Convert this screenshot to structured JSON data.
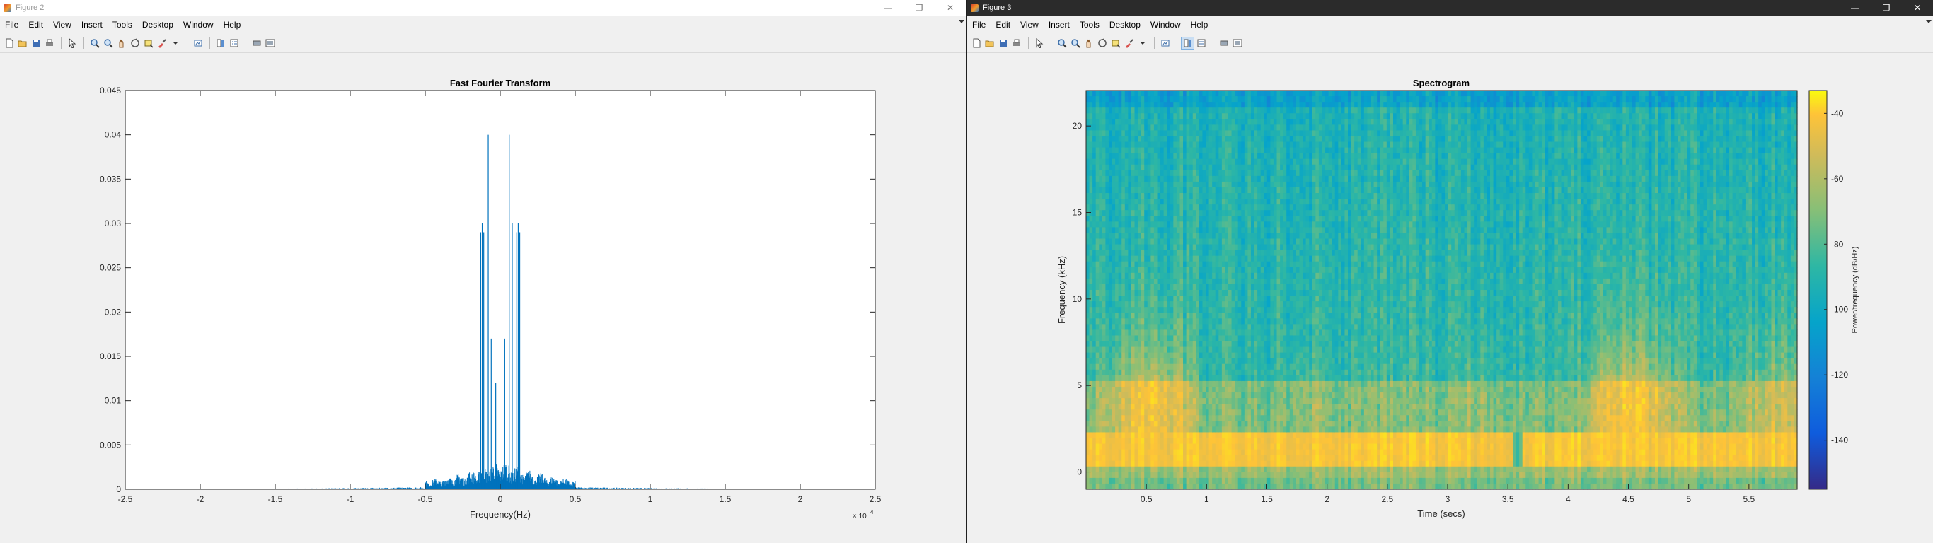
{
  "windows": [
    {
      "title": "Figure 2",
      "menu": [
        "File",
        "Edit",
        "View",
        "Insert",
        "Tools",
        "Desktop",
        "Window",
        "Help"
      ],
      "chart_data": {
        "type": "line",
        "title": "Fast Fourier Transform",
        "xlabel": "Frequency(Hz)",
        "ylabel": "",
        "x_exponent_label": "× 10",
        "x_exponent_power": "4",
        "xlim": [
          -2.5,
          2.5
        ],
        "ylim": [
          0,
          0.045
        ],
        "xticks": [
          "-2.5",
          "-2",
          "-1.5",
          "-1",
          "-0.5",
          "0",
          "0.5",
          "1",
          "1.5",
          "2",
          "2.5"
        ],
        "yticks": [
          "0",
          "0.005",
          "0.01",
          "0.015",
          "0.02",
          "0.025",
          "0.03",
          "0.035",
          "0.04",
          "0.045"
        ],
        "peaks_x_1e4": [
          -0.13,
          -0.12,
          -0.11,
          -0.08,
          -0.06,
          -0.03,
          0.03,
          0.06,
          0.08,
          0.11,
          0.12,
          0.13
        ],
        "peaks_y": [
          0.029,
          0.03,
          0.029,
          0.04,
          0.017,
          0.012,
          0.017,
          0.04,
          0.03,
          0.029,
          0.03,
          0.029
        ],
        "noise_band_x_1e4": [
          -0.5,
          0.5
        ],
        "noise_band_max_y": 0.0035,
        "line_color": "#0072bd"
      }
    },
    {
      "title": "Figure 3",
      "menu": [
        "File",
        "Edit",
        "View",
        "Insert",
        "Tools",
        "Desktop",
        "Window",
        "Help"
      ],
      "chart_data": {
        "type": "heatmap",
        "title": "Spectrogram",
        "xlabel": "Time (secs)",
        "ylabel": "Frequency (kHz)",
        "colorbar_label": "Power/frequency (dB/Hz)",
        "xlim": [
          0,
          5.9
        ],
        "ylim": [
          -1,
          22.05
        ],
        "xticks": [
          "0.5",
          "1",
          "1.5",
          "2",
          "2.5",
          "3",
          "3.5",
          "4",
          "4.5",
          "5",
          "5.5"
        ],
        "yticks": [
          "0",
          "5",
          "10",
          "15",
          "20"
        ],
        "clim": [
          -155,
          -33
        ],
        "cticks": [
          "-40",
          "-60",
          "-80",
          "-100",
          "-120",
          "-140"
        ],
        "colormap": "parula"
      }
    }
  ]
}
